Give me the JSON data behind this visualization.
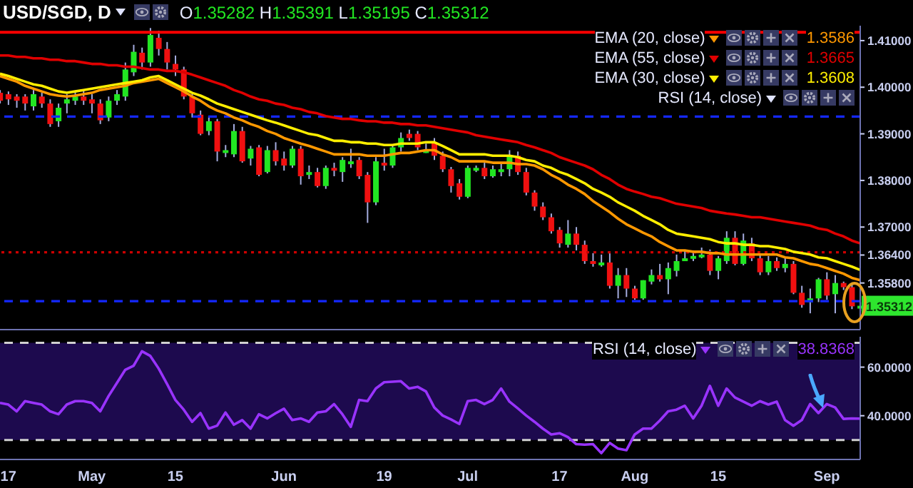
{
  "chart_data": [
    {
      "type": "candlestick",
      "title": "USD/SGD, D",
      "legend": "top right",
      "tick_labels": "y",
      "categories": [
        null,
        null,
        null,
        null,
        null,
        null,
        null,
        null,
        null,
        null,
        null,
        null,
        null,
        null,
        null,
        null,
        null,
        null,
        null,
        null,
        null,
        null,
        null,
        null,
        null,
        null,
        null,
        null,
        null,
        null,
        null,
        null,
        null,
        null,
        null,
        null,
        null,
        null,
        null,
        null,
        null,
        null,
        null,
        null,
        null,
        null,
        null,
        null,
        null,
        null,
        null,
        null,
        null,
        null,
        null,
        null,
        null,
        null,
        null,
        null,
        null,
        null,
        null,
        null,
        null,
        null,
        null,
        null,
        null,
        null,
        null,
        null,
        null,
        null,
        null,
        null,
        null,
        null,
        null,
        null,
        null,
        null,
        null,
        null,
        null,
        null,
        null,
        null,
        null,
        null,
        null,
        null,
        null,
        null,
        null,
        null,
        null,
        null,
        null,
        null,
        null,
        null,
        null,
        null
      ],
      "ohlc": [
        [
          1.3988,
          1.3994,
          1.3965,
          1.3971
        ],
        [
          1.3985,
          1.3991,
          1.3962,
          1.3974
        ],
        [
          1.398,
          1.3985,
          1.3956,
          1.3971
        ],
        [
          1.398,
          1.3985,
          1.395,
          1.3965
        ],
        [
          1.3959,
          1.3994,
          1.395,
          1.3985
        ],
        [
          1.398,
          1.3988,
          1.3956,
          1.3965
        ],
        [
          1.3965,
          1.3974,
          1.3915,
          1.3921
        ],
        [
          1.3927,
          1.3965,
          1.3915,
          1.3956
        ],
        [
          1.3965,
          1.3985,
          1.3944,
          1.3974
        ],
        [
          1.3971,
          1.3988,
          1.3962,
          1.398
        ],
        [
          1.398,
          1.3994,
          1.3962,
          1.3971
        ],
        [
          1.3974,
          1.3985,
          1.3944,
          1.3965
        ],
        [
          1.3965,
          1.3974,
          1.3921,
          1.3929
        ],
        [
          1.3935,
          1.398,
          1.3927,
          1.3971
        ],
        [
          1.3971,
          1.3994,
          1.3962,
          1.3985
        ],
        [
          1.398,
          1.4053,
          1.3971,
          1.4038
        ],
        [
          1.4032,
          1.4091,
          1.4024,
          1.4076
        ],
        [
          1.4074,
          1.4085,
          1.4038,
          1.4053
        ],
        [
          1.4053,
          1.4127,
          1.4044,
          1.4112
        ],
        [
          1.4106,
          1.4121,
          1.4068,
          1.4082
        ],
        [
          1.4082,
          1.4097,
          1.4038,
          1.4053
        ],
        [
          1.405,
          1.4068,
          1.4024,
          1.4038
        ],
        [
          1.4038,
          1.4044,
          1.3974,
          1.398
        ],
        [
          1.398,
          1.3985,
          1.3935,
          1.3944
        ],
        [
          1.3941,
          1.395,
          1.3897,
          1.39
        ],
        [
          1.3906,
          1.3938,
          1.3897,
          1.3927
        ],
        [
          1.3927,
          1.3932,
          1.3841,
          1.3862
        ],
        [
          1.3859,
          1.3876,
          1.385,
          1.3865
        ],
        [
          1.3856,
          1.3921,
          1.385,
          1.3906
        ],
        [
          1.3906,
          1.3915,
          1.3838,
          1.3841
        ],
        [
          1.3847,
          1.3874,
          1.3832,
          1.3868
        ],
        [
          1.3871,
          1.3876,
          1.3809,
          1.3812
        ],
        [
          1.3818,
          1.3874,
          1.3815,
          1.3865
        ],
        [
          1.3865,
          1.3882,
          1.3832,
          1.3841
        ],
        [
          1.3847,
          1.3862,
          1.3821,
          1.3832
        ],
        [
          1.3832,
          1.3874,
          1.3827,
          1.3868
        ],
        [
          1.3868,
          1.3874,
          1.3791,
          1.3809
        ],
        [
          1.3812,
          1.3832,
          1.3803,
          1.3818
        ],
        [
          1.3818,
          1.3827,
          1.3785,
          1.3788
        ],
        [
          1.3788,
          1.3832,
          1.3782,
          1.3827
        ],
        [
          1.3827,
          1.3838,
          1.3809,
          1.3821
        ],
        [
          1.3818,
          1.385,
          1.3797,
          1.3844
        ],
        [
          1.3838,
          1.3868,
          1.3827,
          1.3841
        ],
        [
          1.3844,
          1.385,
          1.3803,
          1.3809
        ],
        [
          1.3812,
          1.3818,
          1.3709,
          1.3753
        ],
        [
          1.3753,
          1.385,
          1.3747,
          1.3841
        ],
        [
          1.3838,
          1.3868,
          1.3821,
          1.3832
        ],
        [
          1.3832,
          1.3874,
          1.3827,
          1.3871
        ],
        [
          1.3871,
          1.3903,
          1.3862,
          1.3891
        ],
        [
          1.39,
          1.3909,
          1.3885,
          1.3891
        ],
        [
          1.39,
          1.3906,
          1.3865,
          1.3871
        ],
        [
          1.3862,
          1.3879,
          1.3859,
          1.3865
        ],
        [
          1.3882,
          1.3891,
          1.3844,
          1.3853
        ],
        [
          1.3853,
          1.3862,
          1.3818,
          1.3824
        ],
        [
          1.3824,
          1.3829,
          1.3774,
          1.3788
        ],
        [
          1.3794,
          1.3803,
          1.3759,
          1.3765
        ],
        [
          1.3765,
          1.3832,
          1.3762,
          1.3827
        ],
        [
          1.3824,
          1.3832,
          1.3818,
          1.3827
        ],
        [
          1.3827,
          1.3838,
          1.3803,
          1.3809
        ],
        [
          1.3809,
          1.3832,
          1.3806,
          1.3824
        ],
        [
          1.3821,
          1.3838,
          1.3809,
          1.3824
        ],
        [
          1.3824,
          1.3865,
          1.3809,
          1.3853
        ],
        [
          1.3853,
          1.3862,
          1.3812,
          1.3818
        ],
        [
          1.3818,
          1.3827,
          1.3768,
          1.3774
        ],
        [
          1.3774,
          1.3779,
          1.3735,
          1.3744
        ],
        [
          1.3744,
          1.3753,
          1.3715,
          1.3721
        ],
        [
          1.3721,
          1.3729,
          1.3686,
          1.3691
        ],
        [
          1.3694,
          1.37,
          1.3656,
          1.3665
        ],
        [
          1.3662,
          1.3715,
          1.3656,
          1.3686
        ],
        [
          1.3686,
          1.37,
          1.365,
          1.3662
        ],
        [
          1.3662,
          1.3671,
          1.3621,
          1.3627
        ],
        [
          1.3627,
          1.3644,
          1.3615,
          1.3624
        ],
        [
          1.3621,
          1.3641,
          1.3615,
          1.3624
        ],
        [
          1.3624,
          1.3644,
          1.3568,
          1.3574
        ],
        [
          1.3574,
          1.3612,
          1.3547,
          1.3597
        ],
        [
          1.3597,
          1.3612,
          1.355,
          1.3568
        ],
        [
          1.3568,
          1.3574,
          1.3544,
          1.3547
        ],
        [
          1.3547,
          1.3586,
          1.3544,
          1.3586
        ],
        [
          1.3583,
          1.3609,
          1.3577,
          1.3597
        ],
        [
          1.3597,
          1.3621,
          1.3583,
          1.3588
        ],
        [
          1.3588,
          1.3624,
          1.3556,
          1.3612
        ],
        [
          1.3606,
          1.3641,
          1.3594,
          1.3627
        ],
        [
          1.363,
          1.365,
          1.3627,
          1.3633
        ],
        [
          1.3635,
          1.365,
          1.3627,
          1.3638
        ],
        [
          1.3638,
          1.3656,
          1.3633,
          1.3641
        ],
        [
          1.3641,
          1.3652,
          1.3597,
          1.3606
        ],
        [
          1.3606,
          1.3638,
          1.3588,
          1.3633
        ],
        [
          1.3627,
          1.3691,
          1.3621,
          1.3677
        ],
        [
          1.3677,
          1.3691,
          1.3618,
          1.3621
        ],
        [
          1.3621,
          1.3686,
          1.3618,
          1.3671
        ],
        [
          1.3665,
          1.3677,
          1.3627,
          1.3633
        ],
        [
          1.3633,
          1.3641,
          1.3597,
          1.3603
        ],
        [
          1.3603,
          1.3638,
          1.3597,
          1.3627
        ],
        [
          1.3627,
          1.3635,
          1.3606,
          1.3612
        ],
        [
          1.3612,
          1.3633,
          1.3603,
          1.3621
        ],
        [
          1.3621,
          1.3627,
          1.3556,
          1.3559
        ],
        [
          1.3559,
          1.3574,
          1.3527,
          1.3533
        ],
        [
          1.3539,
          1.3568,
          1.3515,
          1.3547
        ],
        [
          1.3547,
          1.3591,
          1.3539,
          1.3588
        ],
        [
          1.3588,
          1.3603,
          1.3544,
          1.3553
        ],
        [
          1.3556,
          1.3597,
          1.3515,
          1.358
        ],
        [
          1.358,
          1.3583,
          1.3565,
          1.3571
        ],
        [
          1.3571,
          1.3577,
          1.3524,
          1.353
        ],
        [
          1.35282,
          1.35391,
          1.35195,
          1.35312
        ]
      ],
      "series": [
        {
          "name": "EMA (20, close)",
          "type": "line",
          "color": "#ff9800",
          "values": [
            1.4024,
            1.4018,
            1.4012,
            1.4003,
            1.3997,
            1.3991,
            1.3985,
            1.3982,
            1.398,
            1.3982,
            1.3985,
            1.3988,
            1.3994,
            1.3997,
            1.4,
            1.4003,
            1.4009,
            1.4012,
            1.4015,
            1.4018,
            1.4009,
            1.4,
            1.3991,
            1.398,
            1.3971,
            1.3959,
            1.395,
            1.3944,
            1.3935,
            1.3929,
            1.3921,
            1.3915,
            1.3906,
            1.39,
            1.3891,
            1.3885,
            1.3879,
            1.3874,
            1.3868,
            1.3862,
            1.3856,
            1.3856,
            1.3856,
            1.3856,
            1.3853,
            1.3853,
            1.3853,
            1.3856,
            1.3859,
            1.3859,
            1.3862,
            1.3865,
            1.3865,
            1.3856,
            1.385,
            1.3841,
            1.3841,
            1.3841,
            1.3841,
            1.3838,
            1.3838,
            1.3838,
            1.3835,
            1.3835,
            1.3832,
            1.3824,
            1.3812,
            1.3803,
            1.3791,
            1.3782,
            1.3771,
            1.3756,
            1.3744,
            1.3732,
            1.3718,
            1.3706,
            1.3697,
            1.3688,
            1.368,
            1.3668,
            1.3659,
            1.365,
            1.365,
            1.3647,
            1.3647,
            1.3644,
            1.3644,
            1.3641,
            1.3641,
            1.3641,
            1.3641,
            1.3641,
            1.3641,
            1.3641,
            1.3635,
            1.3633,
            1.3627,
            1.3621,
            1.3618,
            1.3612,
            1.3606,
            1.36,
            1.3591,
            1.3586
          ]
        },
        {
          "name": "EMA (55, close)",
          "type": "line",
          "color": "#e00000",
          "values": [
            1.4068,
            1.4068,
            1.4065,
            1.4065,
            1.4062,
            1.4062,
            1.4059,
            1.4059,
            1.4056,
            1.4056,
            1.4053,
            1.405,
            1.405,
            1.4047,
            1.4047,
            1.4044,
            1.4044,
            1.4041,
            1.4038,
            1.4038,
            1.4035,
            1.4035,
            1.4032,
            1.4027,
            1.4021,
            1.4015,
            1.4009,
            1.4003,
            1.3994,
            1.3988,
            1.398,
            1.3974,
            1.3971,
            1.3965,
            1.3962,
            1.3956,
            1.3953,
            1.3947,
            1.3944,
            1.3938,
            1.3935,
            1.3932,
            1.3932,
            1.3929,
            1.3927,
            1.3927,
            1.3924,
            1.3924,
            1.3921,
            1.3921,
            1.3918,
            1.3918,
            1.3915,
            1.3912,
            1.3909,
            1.3906,
            1.3903,
            1.3897,
            1.3894,
            1.3891,
            1.3888,
            1.3885,
            1.3882,
            1.3876,
            1.3871,
            1.3865,
            1.3859,
            1.385,
            1.3844,
            1.3838,
            1.3832,
            1.3824,
            1.3812,
            1.3803,
            1.3791,
            1.3782,
            1.3776,
            1.3771,
            1.3765,
            1.3762,
            1.3756,
            1.375,
            1.3747,
            1.3744,
            1.3741,
            1.3735,
            1.3732,
            1.3729,
            1.3727,
            1.3724,
            1.3721,
            1.3721,
            1.3718,
            1.3715,
            1.3712,
            1.3709,
            1.3706,
            1.3703,
            1.3697,
            1.3694,
            1.3686,
            1.368,
            1.3671,
            1.3665
          ]
        },
        {
          "name": "EMA (30, close)",
          "type": "line",
          "color": "#ffee00",
          "values": [
            1.4029,
            1.4024,
            1.4018,
            1.4012,
            1.4006,
            1.4003,
            1.3997,
            1.3991,
            1.3988,
            1.3991,
            1.3994,
            1.3997,
            1.4,
            1.4003,
            1.4006,
            1.4009,
            1.4012,
            1.4015,
            1.4021,
            1.4024,
            1.4015,
            1.4006,
            1.3997,
            1.3988,
            1.3982,
            1.3974,
            1.3965,
            1.3959,
            1.3953,
            1.3947,
            1.3941,
            1.3935,
            1.3929,
            1.3924,
            1.3918,
            1.3912,
            1.3906,
            1.39,
            1.3897,
            1.3891,
            1.3885,
            1.3885,
            1.3882,
            1.3882,
            1.3879,
            1.3879,
            1.3876,
            1.3876,
            1.3879,
            1.3879,
            1.3879,
            1.3882,
            1.3882,
            1.3874,
            1.3865,
            1.3856,
            1.3856,
            1.3856,
            1.3856,
            1.3853,
            1.3853,
            1.3853,
            1.385,
            1.3844,
            1.3841,
            1.3832,
            1.3827,
            1.3818,
            1.3812,
            1.3803,
            1.3794,
            1.3782,
            1.3774,
            1.3765,
            1.3753,
            1.3744,
            1.3735,
            1.3724,
            1.3715,
            1.3706,
            1.3694,
            1.3686,
            1.3683,
            1.368,
            1.3677,
            1.3674,
            1.3668,
            1.3665,
            1.3665,
            1.3662,
            1.3662,
            1.3659,
            1.3659,
            1.3656,
            1.3653,
            1.3647,
            1.3644,
            1.3641,
            1.3635,
            1.3633,
            1.3627,
            1.3621,
            1.3615,
            1.3608
          ]
        }
      ],
      "ylim": [
        1.348,
        1.4132
      ],
      "yticks": [
        {
          "value": 1.41,
          "label": "1.41000"
        },
        {
          "value": 1.4,
          "label": "1.40000"
        },
        {
          "value": 1.39,
          "label": "1.39000"
        },
        {
          "value": 1.38,
          "label": "1.38000"
        },
        {
          "value": 1.37,
          "label": "1.37000"
        },
        {
          "value": 1.364,
          "label": "1.36400"
        },
        {
          "value": 1.358,
          "label": "1.35800"
        }
      ],
      "ref_lines": [
        {
          "axis": "y",
          "value": 1.4118,
          "color": "#ff0000",
          "line_style": "solid"
        },
        {
          "axis": "y",
          "value": 1.3937,
          "color": "#1428ff",
          "line_style": "dashed"
        },
        {
          "axis": "y",
          "value": 1.3646,
          "color": "#cc0000",
          "line_style": "dotted"
        },
        {
          "axis": "y",
          "value": 1.3541,
          "color": "#1428ff",
          "line_style": "dashed"
        }
      ],
      "annotations": [
        "O1.35282 H1.35391 L1.35195 C1.35312",
        "1.3586",
        "1.3665",
        "1.3608",
        "RSI (14, close)",
        {
          "text": "1.35312",
          "y": 1.35312
        }
      ]
    },
    {
      "type": "line",
      "legend": "top right",
      "categories": [
        null,
        "17",
        null,
        null,
        null,
        null,
        null,
        null,
        null,
        null,
        null,
        "May",
        null,
        null,
        null,
        null,
        null,
        null,
        null,
        null,
        null,
        "15",
        null,
        null,
        null,
        null,
        null,
        null,
        null,
        null,
        null,
        null,
        null,
        null,
        "Jun",
        null,
        null,
        null,
        null,
        null,
        null,
        null,
        null,
        null,
        null,
        null,
        "19",
        null,
        null,
        null,
        null,
        null,
        null,
        null,
        null,
        null,
        "Jul",
        null,
        null,
        null,
        null,
        null,
        null,
        null,
        null,
        null,
        null,
        "17",
        null,
        null,
        null,
        null,
        null,
        null,
        null,
        null,
        "Aug",
        null,
        null,
        null,
        null,
        null,
        null,
        null,
        null,
        null,
        "15",
        null,
        null,
        null,
        null,
        null,
        null,
        null,
        null,
        null,
        null,
        null,
        null,
        "Sep",
        null,
        null,
        null,
        null
      ],
      "series": [
        {
          "name": "RSI (14, close)",
          "color": "#9933ff",
          "values": [
            45.3,
            44.6,
            41.8,
            46.0,
            45.3,
            44.6,
            41.8,
            40.6,
            44.6,
            46.0,
            46.0,
            45.3,
            41.8,
            48.1,
            53.5,
            58.9,
            60.6,
            66.5,
            64.6,
            59.4,
            53.1,
            46.5,
            42.5,
            37.5,
            41.1,
            34.7,
            35.9,
            41.3,
            36.3,
            38.2,
            34.7,
            40.6,
            38.9,
            41.0,
            42.9,
            38.2,
            38.9,
            37.5,
            41.3,
            41.8,
            44.8,
            40.6,
            35.4,
            46.5,
            46.0,
            51.2,
            53.8,
            54.0,
            54.2,
            51.2,
            51.9,
            50.0,
            43.4,
            40.1,
            38.5,
            36.6,
            46.0,
            46.5,
            44.8,
            46.5,
            51.2,
            45.8,
            43.0,
            40.1,
            37.5,
            34.7,
            32.3,
            32.8,
            31.2,
            28.3,
            28.1,
            28.3,
            24.6,
            28.8,
            26.5,
            25.8,
            32.3,
            34.7,
            34.7,
            38.0,
            41.8,
            42.5,
            44.1,
            38.9,
            44.1,
            52.3,
            44.1,
            51.2,
            47.5,
            45.8,
            44.1,
            46.0,
            44.6,
            45.8,
            38.2,
            35.9,
            38.2,
            44.8,
            41.1,
            44.8,
            43.4,
            38.7,
            38.9,
            38.8
          ]
        }
      ],
      "ylim": [
        22,
        72.5
      ],
      "yticks": [
        {
          "value": 40,
          "label": "40.0000"
        },
        {
          "value": 60,
          "label": "60.0000"
        }
      ],
      "ref_lines": [
        {
          "axis": "y",
          "value": 70,
          "color": "#d0d0d0",
          "line_style": "dashed"
        },
        {
          "axis": "y",
          "value": 30,
          "color": "#d0d0d0",
          "line_style": "dashed"
        }
      ],
      "bands": [
        {
          "axis": "y",
          "from": 30,
          "to": 70,
          "color": "#1d0a4e"
        }
      ],
      "annotations": [
        "38.8368"
      ]
    }
  ]
}
